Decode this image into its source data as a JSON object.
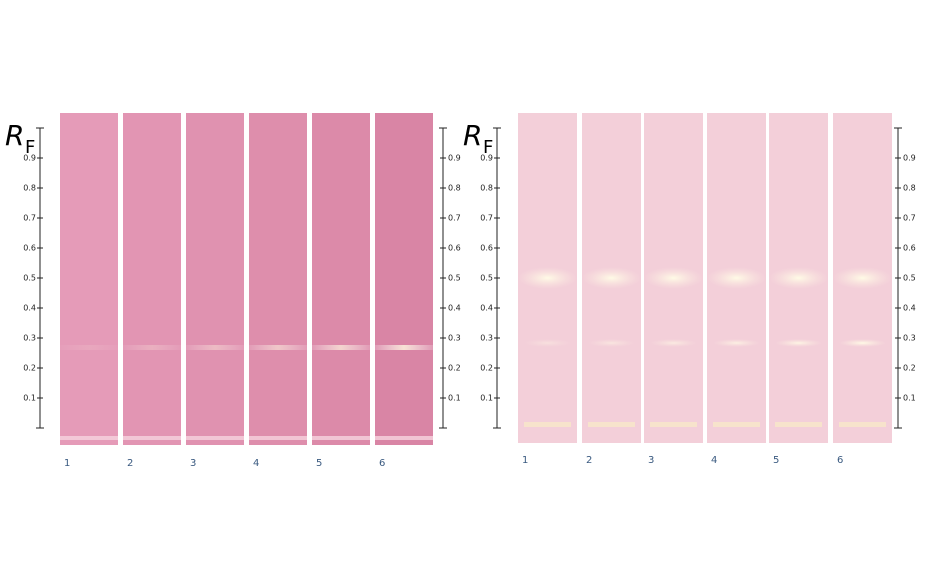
{
  "panels": [
    {
      "axis_label": {
        "symbol": "R",
        "subscript": "F"
      },
      "ticks": [
        0.1,
        0.2,
        0.3,
        0.4,
        0.5,
        0.6,
        0.7,
        0.8,
        0.9
      ],
      "lanes": [
        "1",
        "2",
        "3",
        "4",
        "5",
        "6"
      ]
    },
    {
      "axis_label": {
        "symbol": "R",
        "subscript": "F"
      },
      "ticks": [
        0.1,
        0.2,
        0.3,
        0.4,
        0.5,
        0.6,
        0.7,
        0.8,
        0.9
      ],
      "lanes": [
        "1",
        "2",
        "3",
        "4",
        "5",
        "6"
      ]
    }
  ]
}
